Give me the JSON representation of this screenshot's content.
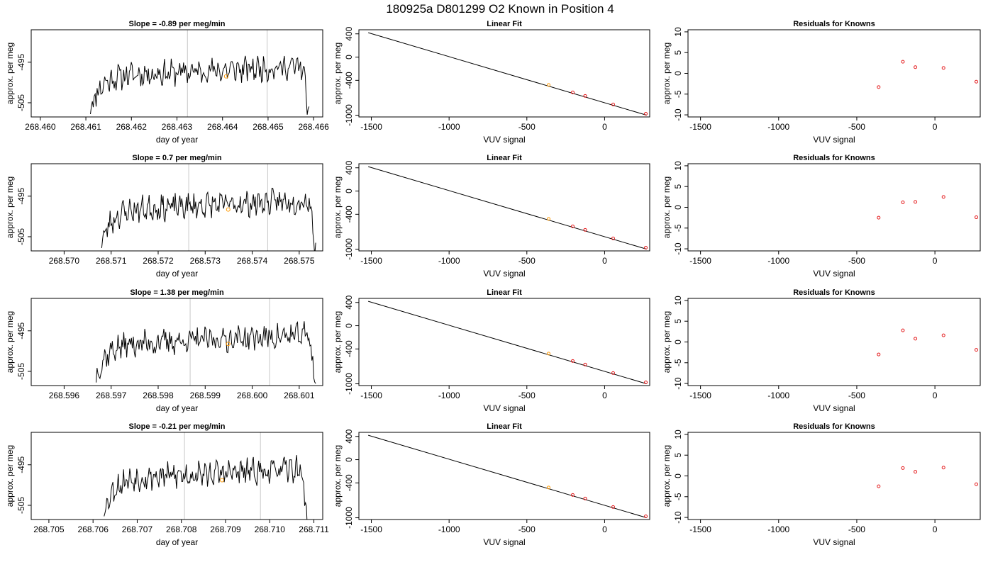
{
  "figure": {
    "title": "180925a     D801299   O2 Known in Position  4"
  },
  "colors": {
    "trace": "#000000",
    "frame": "#000000",
    "marker_orange": "#ff9900",
    "marker_red": "#e41a1c",
    "vline": "#c8c8c8"
  },
  "rows": [
    {
      "time_series": {
        "title": "Slope =  -0.89  per meg/min",
        "xlabel": "day of year",
        "ylabel": "approx. per meg",
        "xticks": [
          268.46,
          268.461,
          268.462,
          268.463,
          268.464,
          268.465,
          268.466
        ],
        "xtick_labels": [
          "268.460",
          "268.461",
          "268.462",
          "268.463",
          "268.464",
          "268.465",
          "268.466"
        ],
        "xlim": [
          268.4598,
          268.4662
        ],
        "yticks": [
          -495,
          -505
        ],
        "ytick_labels": [
          "-495",
          "-505"
        ],
        "ylim": [
          -508.5,
          -487
        ],
        "data_start": 268.4611,
        "data_end": 268.4659,
        "vlines": [
          268.46323,
          268.46498
        ],
        "marker": {
          "x": 268.46408,
          "y": -498.5
        },
        "seed": 11
      },
      "linear_fit": {
        "title": "Linear Fit",
        "xlabel": "VUV signal",
        "ylabel": "approx. per meg",
        "xticks": [
          -1500,
          -1000,
          -500,
          0
        ],
        "xtick_labels": [
          "-1500",
          "-1000",
          "-500",
          "0"
        ],
        "xlim": [
          -1580,
          290
        ],
        "yticks": [
          400,
          0,
          -400,
          -1000
        ],
        "ytick_labels": [
          "400",
          "0",
          "-400",
          "-1000"
        ],
        "ylim": [
          -1030,
          470
        ],
        "line": {
          "x": [
            -1520,
            270
          ],
          "y": [
            420,
            -1000
          ]
        },
        "points": [
          {
            "x": -360,
            "y": -480,
            "color": "orange"
          },
          {
            "x": -205,
            "y": -608,
            "color": "red"
          },
          {
            "x": -125,
            "y": -668,
            "color": "red"
          },
          {
            "x": 55,
            "y": -815,
            "color": "red"
          },
          {
            "x": 265,
            "y": -975,
            "color": "red"
          }
        ]
      },
      "residuals": {
        "title": "Residuals for Knowns",
        "xlabel": "VUV signal",
        "ylabel": "approx. per meg",
        "xticks": [
          -1500,
          -1000,
          -500,
          0
        ],
        "xtick_labels": [
          "-1500",
          "-1000",
          "-500",
          "0"
        ],
        "xlim": [
          -1580,
          290
        ],
        "yticks": [
          10,
          5,
          0,
          -5,
          -10
        ],
        "ytick_labels": [
          "10",
          "5",
          "0",
          "-5",
          "-10"
        ],
        "ylim": [
          -10.5,
          10.5
        ],
        "points": [
          {
            "x": -360,
            "y": -3.3
          },
          {
            "x": -205,
            "y": 2.8
          },
          {
            "x": -125,
            "y": 1.5
          },
          {
            "x": 55,
            "y": 1.3
          },
          {
            "x": 265,
            "y": -2.0
          }
        ]
      }
    },
    {
      "time_series": {
        "title": "Slope =  0.7  per meg/min",
        "xlabel": "day of year",
        "ylabel": "approx. per meg",
        "xticks": [
          268.57,
          268.571,
          268.572,
          268.573,
          268.574,
          268.575
        ],
        "xtick_labels": [
          "268.570",
          "268.571",
          "268.572",
          "268.573",
          "268.574",
          "268.575"
        ],
        "xlim": [
          268.5693,
          268.5755
        ],
        "yticks": [
          -495,
          -505
        ],
        "ytick_labels": [
          "-495",
          "-505"
        ],
        "ylim": [
          -508.5,
          -487
        ],
        "data_start": 268.5708,
        "data_end": 268.57535,
        "vlines": [
          268.57265,
          268.57433
        ],
        "marker": {
          "x": 268.57349,
          "y": -498.3
        },
        "seed": 23
      },
      "linear_fit": {
        "title": "Linear Fit",
        "xlabel": "VUV signal",
        "ylabel": "approx. per meg",
        "xticks": [
          -1500,
          -1000,
          -500,
          0
        ],
        "xtick_labels": [
          "-1500",
          "-1000",
          "-500",
          "0"
        ],
        "xlim": [
          -1580,
          290
        ],
        "yticks": [
          400,
          0,
          -400,
          -1000
        ],
        "ytick_labels": [
          "400",
          "0",
          "-400",
          "-1000"
        ],
        "ylim": [
          -1030,
          470
        ],
        "line": {
          "x": [
            -1520,
            270
          ],
          "y": [
            420,
            -1000
          ]
        },
        "points": [
          {
            "x": -360,
            "y": -480,
            "color": "orange"
          },
          {
            "x": -205,
            "y": -608,
            "color": "red"
          },
          {
            "x": -125,
            "y": -668,
            "color": "red"
          },
          {
            "x": 55,
            "y": -815,
            "color": "red"
          },
          {
            "x": 265,
            "y": -975,
            "color": "red"
          }
        ]
      },
      "residuals": {
        "title": "Residuals for Knowns",
        "xlabel": "VUV signal",
        "ylabel": "approx. per meg",
        "xticks": [
          -1500,
          -1000,
          -500,
          0
        ],
        "xtick_labels": [
          "-1500",
          "-1000",
          "-500",
          "0"
        ],
        "xlim": [
          -1580,
          290
        ],
        "yticks": [
          10,
          5,
          0,
          -5,
          -10
        ],
        "ytick_labels": [
          "10",
          "5",
          "0",
          "-5",
          "-10"
        ],
        "ylim": [
          -10.5,
          10.5
        ],
        "points": [
          {
            "x": -360,
            "y": -2.5
          },
          {
            "x": -205,
            "y": 1.2
          },
          {
            "x": -125,
            "y": 1.3
          },
          {
            "x": 55,
            "y": 2.5
          },
          {
            "x": 265,
            "y": -2.4
          }
        ]
      }
    },
    {
      "time_series": {
        "title": "Slope =  1.38  per meg/min",
        "xlabel": "day of year",
        "ylabel": "approx. per meg",
        "xticks": [
          268.596,
          268.597,
          268.598,
          268.599,
          268.6,
          268.601
        ],
        "xtick_labels": [
          "268.596",
          "268.597",
          "268.598",
          "268.599",
          "268.600",
          "268.601"
        ],
        "xlim": [
          268.5953,
          268.6015
        ],
        "yticks": [
          -495,
          -505
        ],
        "ytick_labels": [
          "-495",
          "-505"
        ],
        "ylim": [
          -508.5,
          -487
        ],
        "data_start": 268.59668,
        "data_end": 268.60135,
        "vlines": [
          268.59868,
          268.60037
        ],
        "marker": {
          "x": 268.59949,
          "y": -498.2
        },
        "seed": 37
      },
      "linear_fit": {
        "title": "Linear Fit",
        "xlabel": "VUV signal",
        "ylabel": "approx. per meg",
        "xticks": [
          -1500,
          -1000,
          -500,
          0
        ],
        "xtick_labels": [
          "-1500",
          "-1000",
          "-500",
          "0"
        ],
        "xlim": [
          -1580,
          290
        ],
        "yticks": [
          400,
          0,
          -400,
          -1000
        ],
        "ytick_labels": [
          "400",
          "0",
          "-400",
          "-1000"
        ],
        "ylim": [
          -1030,
          470
        ],
        "line": {
          "x": [
            -1520,
            270
          ],
          "y": [
            420,
            -1000
          ]
        },
        "points": [
          {
            "x": -360,
            "y": -480,
            "color": "orange"
          },
          {
            "x": -205,
            "y": -608,
            "color": "red"
          },
          {
            "x": -125,
            "y": -668,
            "color": "red"
          },
          {
            "x": 55,
            "y": -815,
            "color": "red"
          },
          {
            "x": 265,
            "y": -975,
            "color": "red"
          }
        ]
      },
      "residuals": {
        "title": "Residuals for Knowns",
        "xlabel": "VUV signal",
        "ylabel": "approx. per meg",
        "xticks": [
          -1500,
          -1000,
          -500,
          0
        ],
        "xtick_labels": [
          "-1500",
          "-1000",
          "-500",
          "0"
        ],
        "xlim": [
          -1580,
          290
        ],
        "yticks": [
          10,
          5,
          0,
          -5,
          -10
        ],
        "ytick_labels": [
          "10",
          "5",
          "0",
          "-5",
          "-10"
        ],
        "ylim": [
          -10.5,
          10.5
        ],
        "points": [
          {
            "x": -360,
            "y": -3.0
          },
          {
            "x": -205,
            "y": 2.8
          },
          {
            "x": -125,
            "y": 0.8
          },
          {
            "x": 55,
            "y": 1.6
          },
          {
            "x": 265,
            "y": -1.9
          }
        ]
      }
    },
    {
      "time_series": {
        "title": "Slope =  -0.21  per meg/min",
        "xlabel": "day of year",
        "ylabel": "approx. per meg",
        "xticks": [
          268.705,
          268.706,
          268.707,
          268.708,
          268.709,
          268.71,
          268.711
        ],
        "xtick_labels": [
          "268.705",
          "268.706",
          "268.707",
          "268.708",
          "268.709",
          "268.710",
          "268.711"
        ],
        "xlim": [
          268.7046,
          268.7112
        ],
        "yticks": [
          -495,
          -505
        ],
        "ytick_labels": [
          "-495",
          "-505"
        ],
        "ylim": [
          -508.5,
          -487
        ],
        "data_start": 268.70625,
        "data_end": 268.71085,
        "vlines": [
          268.70807,
          268.70979
        ],
        "marker": {
          "x": 268.70892,
          "y": -498.8
        },
        "seed": 53
      },
      "linear_fit": {
        "title": "Linear Fit",
        "xlabel": "VUV signal",
        "ylabel": "approx. per meg",
        "xticks": [
          -1500,
          -1000,
          -500,
          0
        ],
        "xtick_labels": [
          "-1500",
          "-1000",
          "-500",
          "0"
        ],
        "xlim": [
          -1580,
          290
        ],
        "yticks": [
          400,
          0,
          -400,
          -1000
        ],
        "ytick_labels": [
          "400",
          "0",
          "-400",
          "-1000"
        ],
        "ylim": [
          -1030,
          470
        ],
        "line": {
          "x": [
            -1520,
            270
          ],
          "y": [
            420,
            -1000
          ]
        },
        "points": [
          {
            "x": -360,
            "y": -480,
            "color": "orange"
          },
          {
            "x": -205,
            "y": -608,
            "color": "red"
          },
          {
            "x": -125,
            "y": -668,
            "color": "red"
          },
          {
            "x": 55,
            "y": -815,
            "color": "red"
          },
          {
            "x": 265,
            "y": -975,
            "color": "red"
          }
        ]
      },
      "residuals": {
        "title": "Residuals for Knowns",
        "xlabel": "VUV signal",
        "ylabel": "approx. per meg",
        "xticks": [
          -1500,
          -1000,
          -500,
          0
        ],
        "xtick_labels": [
          "-1500",
          "-1000",
          "-500",
          "0"
        ],
        "xlim": [
          -1580,
          290
        ],
        "yticks": [
          10,
          5,
          0,
          -5,
          -10
        ],
        "ytick_labels": [
          "10",
          "5",
          "0",
          "-5",
          "-10"
        ],
        "ylim": [
          -10.5,
          10.5
        ],
        "points": [
          {
            "x": -360,
            "y": -2.5
          },
          {
            "x": -205,
            "y": 1.9
          },
          {
            "x": -125,
            "y": 1.0
          },
          {
            "x": 55,
            "y": 2.0
          },
          {
            "x": 265,
            "y": -2.0
          }
        ]
      }
    }
  ],
  "chart_data": [
    {
      "type": "line",
      "title": "Slope =  -0.89  per meg/min",
      "xlabel": "day of year",
      "ylabel": "approx. per meg",
      "xlim": [
        268.4598,
        268.4662
      ],
      "yticks": [
        -495,
        -505
      ]
    },
    {
      "type": "scatter",
      "title": "Linear Fit",
      "xlabel": "VUV signal",
      "ylabel": "approx. per meg",
      "x": [
        -360,
        -205,
        -125,
        55,
        265
      ],
      "y": [
        -480,
        -608,
        -668,
        -815,
        -975
      ]
    },
    {
      "type": "scatter",
      "title": "Residuals for Knowns",
      "xlabel": "VUV signal",
      "ylabel": "approx. per meg",
      "x": [
        -360,
        -205,
        -125,
        55,
        265
      ],
      "y": [
        -3.3,
        2.8,
        1.5,
        1.3,
        -2.0
      ]
    },
    {
      "type": "line",
      "title": "Slope =  0.7  per meg/min",
      "xlabel": "day of year",
      "ylabel": "approx. per meg",
      "xlim": [
        268.5693,
        268.5755
      ],
      "yticks": [
        -495,
        -505
      ]
    },
    {
      "type": "scatter",
      "title": "Linear Fit",
      "xlabel": "VUV signal",
      "ylabel": "approx. per meg",
      "x": [
        -360,
        -205,
        -125,
        55,
        265
      ],
      "y": [
        -480,
        -608,
        -668,
        -815,
        -975
      ]
    },
    {
      "type": "scatter",
      "title": "Residuals for Knowns",
      "xlabel": "VUV signal",
      "ylabel": "approx. per meg",
      "x": [
        -360,
        -205,
        -125,
        55,
        265
      ],
      "y": [
        -2.5,
        1.2,
        1.3,
        2.5,
        -2.4
      ]
    },
    {
      "type": "line",
      "title": "Slope =  1.38  per meg/min",
      "xlabel": "day of year",
      "ylabel": "approx. per meg",
      "xlim": [
        268.5953,
        268.6015
      ],
      "yticks": [
        -495,
        -505
      ]
    },
    {
      "type": "scatter",
      "title": "Linear Fit",
      "xlabel": "VUV signal",
      "ylabel": "approx. per meg",
      "x": [
        -360,
        -205,
        -125,
        55,
        265
      ],
      "y": [
        -480,
        -608,
        -668,
        -815,
        -975
      ]
    },
    {
      "type": "scatter",
      "title": "Residuals for Knowns",
      "xlabel": "VUV signal",
      "ylabel": "approx. per meg",
      "x": [
        -360,
        -205,
        -125,
        55,
        265
      ],
      "y": [
        -3.0,
        2.8,
        0.8,
        1.6,
        -1.9
      ]
    },
    {
      "type": "line",
      "title": "Slope =  -0.21  per meg/min",
      "xlabel": "day of year",
      "ylabel": "approx. per meg",
      "xlim": [
        268.7046,
        268.7112
      ],
      "yticks": [
        -495,
        -505
      ]
    },
    {
      "type": "scatter",
      "title": "Linear Fit",
      "xlabel": "VUV signal",
      "ylabel": "approx. per meg",
      "x": [
        -360,
        -205,
        -125,
        55,
        265
      ],
      "y": [
        -480,
        -608,
        -668,
        -815,
        -975
      ]
    },
    {
      "type": "scatter",
      "title": "Residuals for Knowns",
      "xlabel": "VUV signal",
      "ylabel": "approx. per meg",
      "x": [
        -360,
        -205,
        -125,
        55,
        265
      ],
      "y": [
        -2.5,
        1.9,
        1.0,
        2.0,
        -2.0
      ]
    }
  ]
}
